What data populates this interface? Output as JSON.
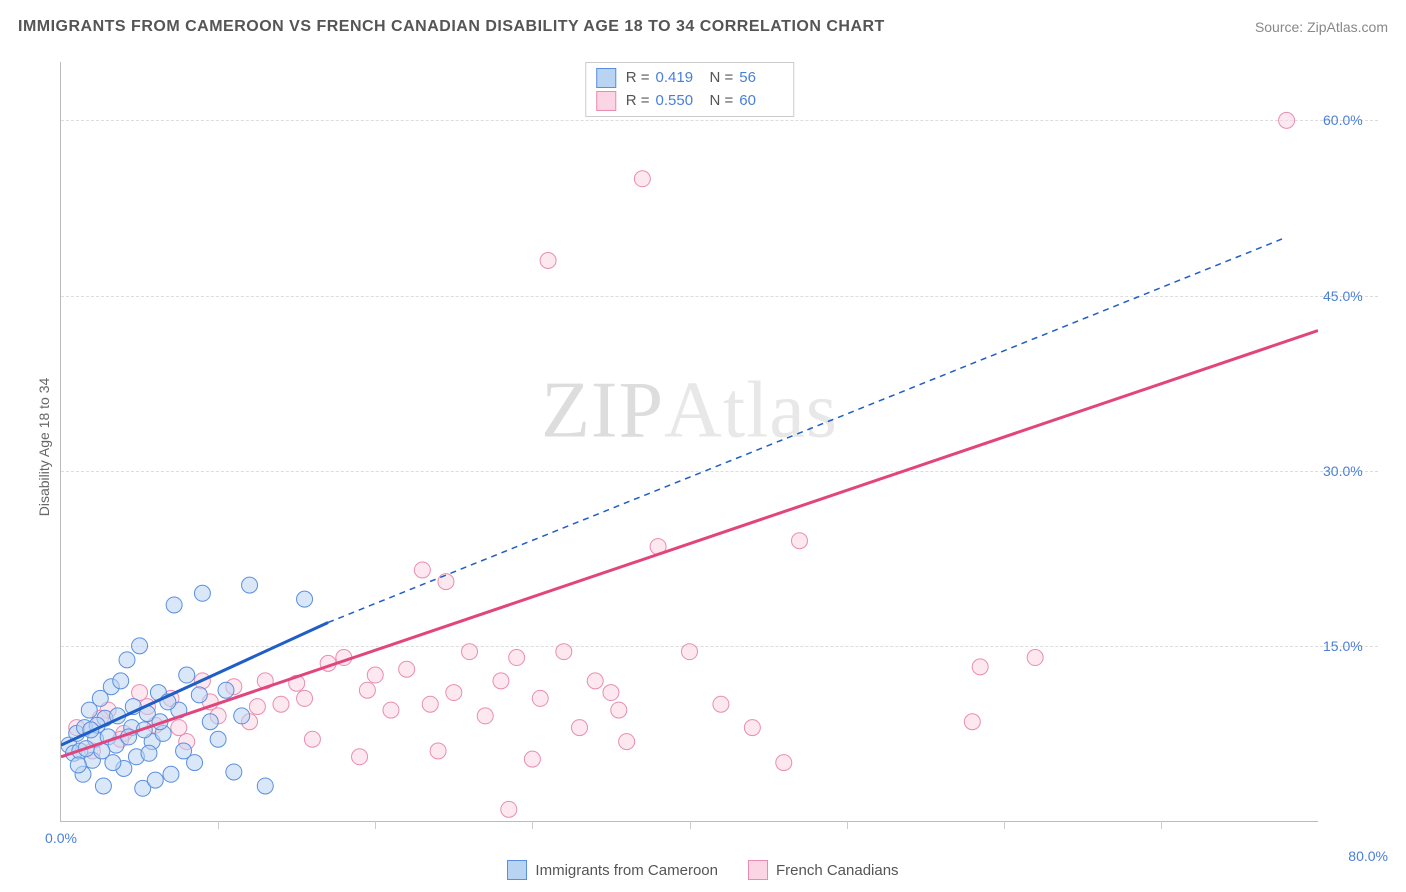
{
  "header": {
    "title": "IMMIGRANTS FROM CAMEROON VS FRENCH CANADIAN DISABILITY AGE 18 TO 34 CORRELATION CHART",
    "source": "Source: ZipAtlas.com"
  },
  "watermark": {
    "z": "ZIP",
    "a": "Atlas"
  },
  "y_axis_label": "Disability Age 18 to 34",
  "chart": {
    "type": "scatter",
    "xlim": [
      0,
      80
    ],
    "ylim": [
      0,
      65
    ],
    "x_ticks": [
      0,
      10,
      20,
      30,
      40,
      50,
      60,
      70,
      80
    ],
    "x_tick_labels": {
      "0": "0.0%"
    },
    "y_ticks": [
      15,
      30,
      45,
      60
    ],
    "y_tick_labels": {
      "15": "15.0%",
      "30": "30.0%",
      "45": "45.0%",
      "60": "60.0%"
    },
    "x_max_label": "80.0%",
    "grid_color": "#dddddd",
    "colors": {
      "series_a_fill": "#b9d3f3",
      "series_a_stroke": "#5a8fe0",
      "series_a_line": "#1f5dc7",
      "series_b_fill": "#fbd5e3",
      "series_b_stroke": "#e88db1",
      "series_b_line": "#e2457c",
      "tick_label": "#4a7fd8"
    },
    "marker_radius": 8,
    "marker_opacity": 0.55,
    "series": [
      {
        "name": "Immigrants from Cameroon",
        "key": "a",
        "R": "0.419",
        "N": "56",
        "trend": {
          "x1": 0,
          "y1": 6.5,
          "x2": 17,
          "y2": 17,
          "extend_x2": 78,
          "extend_y2": 50,
          "solid_until_x": 17
        },
        "points": [
          [
            0.5,
            6.5
          ],
          [
            0.8,
            5.8
          ],
          [
            1.0,
            7.5
          ],
          [
            1.2,
            6.0
          ],
          [
            1.4,
            4.0
          ],
          [
            1.5,
            8.0
          ],
          [
            1.8,
            9.5
          ],
          [
            2.0,
            5.2
          ],
          [
            2.2,
            7.0
          ],
          [
            2.5,
            10.5
          ],
          [
            2.7,
            3.0
          ],
          [
            2.8,
            8.8
          ],
          [
            3.0,
            7.2
          ],
          [
            3.2,
            11.5
          ],
          [
            3.5,
            6.5
          ],
          [
            3.8,
            12.0
          ],
          [
            4.0,
            4.5
          ],
          [
            4.2,
            13.8
          ],
          [
            4.5,
            8.0
          ],
          [
            4.8,
            5.5
          ],
          [
            5.0,
            15.0
          ],
          [
            5.2,
            2.8
          ],
          [
            5.5,
            9.2
          ],
          [
            5.8,
            6.8
          ],
          [
            6.0,
            3.5
          ],
          [
            6.2,
            11.0
          ],
          [
            6.5,
            7.5
          ],
          [
            7.0,
            4.0
          ],
          [
            7.2,
            18.5
          ],
          [
            7.5,
            9.5
          ],
          [
            8.0,
            12.5
          ],
          [
            8.5,
            5.0
          ],
          [
            9.0,
            19.5
          ],
          [
            9.5,
            8.5
          ],
          [
            10.0,
            7.0
          ],
          [
            11.0,
            4.2
          ],
          [
            12.0,
            20.2
          ],
          [
            13.0,
            3.0
          ],
          [
            15.5,
            19.0
          ],
          [
            1.6,
            6.2
          ],
          [
            2.3,
            8.2
          ],
          [
            3.3,
            5.0
          ],
          [
            4.6,
            9.8
          ],
          [
            5.3,
            7.8
          ],
          [
            6.8,
            10.2
          ],
          [
            7.8,
            6.0
          ],
          [
            1.1,
            4.8
          ],
          [
            1.9,
            7.8
          ],
          [
            2.6,
            6.0
          ],
          [
            3.6,
            9.0
          ],
          [
            4.3,
            7.2
          ],
          [
            5.6,
            5.8
          ],
          [
            6.3,
            8.5
          ],
          [
            8.8,
            10.8
          ],
          [
            10.5,
            11.2
          ],
          [
            11.5,
            9.0
          ]
        ]
      },
      {
        "name": "French Canadians",
        "key": "b",
        "R": "0.550",
        "N": "60",
        "trend": {
          "x1": 0,
          "y1": 5.5,
          "x2": 80,
          "y2": 42
        },
        "points": [
          [
            1.0,
            8.0
          ],
          [
            2.0,
            6.0
          ],
          [
            3.0,
            9.5
          ],
          [
            4.0,
            7.5
          ],
          [
            5.0,
            11.0
          ],
          [
            6.0,
            8.2
          ],
          [
            7.0,
            10.5
          ],
          [
            8.0,
            6.8
          ],
          [
            9.0,
            12.0
          ],
          [
            10.0,
            9.0
          ],
          [
            11.0,
            11.5
          ],
          [
            12.0,
            8.5
          ],
          [
            13.0,
            12.0
          ],
          [
            14.0,
            10.0
          ],
          [
            15.0,
            11.8
          ],
          [
            16.0,
            7.0
          ],
          [
            17.0,
            13.5
          ],
          [
            18.0,
            14.0
          ],
          [
            19.0,
            5.5
          ],
          [
            20.0,
            12.5
          ],
          [
            21.0,
            9.5
          ],
          [
            22.0,
            13.0
          ],
          [
            23.0,
            21.5
          ],
          [
            23.5,
            10.0
          ],
          [
            24.0,
            6.0
          ],
          [
            24.5,
            20.5
          ],
          [
            25.0,
            11.0
          ],
          [
            26.0,
            14.5
          ],
          [
            27.0,
            9.0
          ],
          [
            28.0,
            12.0
          ],
          [
            28.5,
            1.0
          ],
          [
            29.0,
            14.0
          ],
          [
            30.0,
            5.3
          ],
          [
            30.5,
            10.5
          ],
          [
            31.0,
            48.0
          ],
          [
            32.0,
            14.5
          ],
          [
            33.0,
            8.0
          ],
          [
            34.0,
            12.0
          ],
          [
            35.0,
            11.0
          ],
          [
            35.5,
            9.5
          ],
          [
            36.0,
            6.8
          ],
          [
            37.0,
            55.0
          ],
          [
            38.0,
            23.5
          ],
          [
            40.0,
            14.5
          ],
          [
            42.0,
            10.0
          ],
          [
            44.0,
            8.0
          ],
          [
            46.0,
            5.0
          ],
          [
            47.0,
            24.0
          ],
          [
            58.0,
            8.5
          ],
          [
            58.5,
            13.2
          ],
          [
            62.0,
            14.0
          ],
          [
            78.0,
            60.0
          ],
          [
            2.5,
            8.8
          ],
          [
            3.8,
            7.0
          ],
          [
            5.5,
            9.8
          ],
          [
            7.5,
            8.0
          ],
          [
            9.5,
            10.2
          ],
          [
            12.5,
            9.8
          ],
          [
            15.5,
            10.5
          ],
          [
            19.5,
            11.2
          ]
        ]
      }
    ]
  },
  "bottom_legend": {
    "a": "Immigrants from Cameroon",
    "b": "French Canadians"
  }
}
